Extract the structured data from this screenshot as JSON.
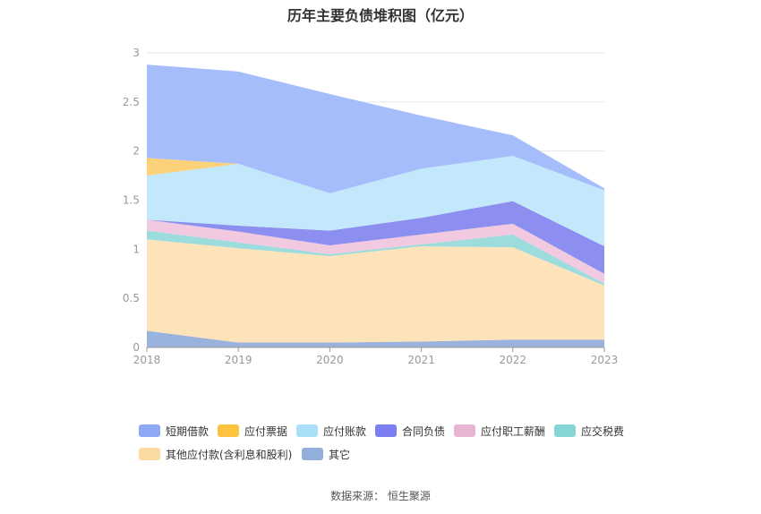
{
  "title": "历年主要负债堆积图（亿元）",
  "source": "数据来源：  恒生聚源",
  "chart_data": {
    "type": "area",
    "stacked": true,
    "title": "历年主要负债堆积图（亿元）",
    "x": [
      "2018",
      "2019",
      "2020",
      "2021",
      "2022",
      "2023"
    ],
    "y_ticks": [
      "0",
      "0.5",
      "1",
      "1.5",
      "2",
      "2.5",
      "3"
    ],
    "ylim": [
      0,
      3
    ],
    "grid": true,
    "legend_position": "bottom",
    "series": [
      {
        "name": "其它",
        "color": "#9ab3dd",
        "values": [
          0.17,
          0.05,
          0.05,
          0.06,
          0.08,
          0.08
        ]
      },
      {
        "name": "其他应付款(含利息和股利)",
        "color": "#fde3b9",
        "values": [
          0.93,
          0.96,
          0.88,
          0.97,
          0.94,
          0.55
        ]
      },
      {
        "name": "应交税费",
        "color": "#9ddcdc",
        "values": [
          0.09,
          0.06,
          0.02,
          0.02,
          0.13,
          0.02
        ]
      },
      {
        "name": "应付职工薪酬",
        "color": "#f1c9e0",
        "values": [
          0.11,
          0.11,
          0.09,
          0.1,
          0.11,
          0.1
        ]
      },
      {
        "name": "合同负债",
        "color": "#8c8ef0",
        "values": [
          0.0,
          0.06,
          0.15,
          0.17,
          0.23,
          0.28
        ]
      },
      {
        "name": "应付账款",
        "color": "#c4e8fb",
        "values": [
          0.45,
          0.63,
          0.38,
          0.5,
          0.46,
          0.57
        ]
      },
      {
        "name": "应付票据",
        "color": "#fbd27a",
        "values": [
          0.18,
          0.0,
          0.0,
          0.0,
          0.0,
          0.0
        ]
      },
      {
        "name": "短期借款",
        "color": "#a6bdfc",
        "values": [
          0.95,
          0.94,
          1.01,
          0.54,
          0.21,
          0.02
        ]
      }
    ]
  },
  "legend": {
    "items": [
      {
        "label": "短期借款",
        "color": "#8da8f5"
      },
      {
        "label": "应付票据",
        "color": "#fbc33f"
      },
      {
        "label": "应付账款",
        "color": "#a9dff8"
      },
      {
        "label": "合同负债",
        "color": "#7a7ef0"
      },
      {
        "label": "应付职工薪酬",
        "color": "#e9b4d4"
      },
      {
        "label": "应交税费",
        "color": "#86d6d6"
      },
      {
        "label": "其他应付款(含利息和股利)",
        "color": "#fcd9a0"
      },
      {
        "label": "其它",
        "color": "#92aedb"
      }
    ]
  }
}
